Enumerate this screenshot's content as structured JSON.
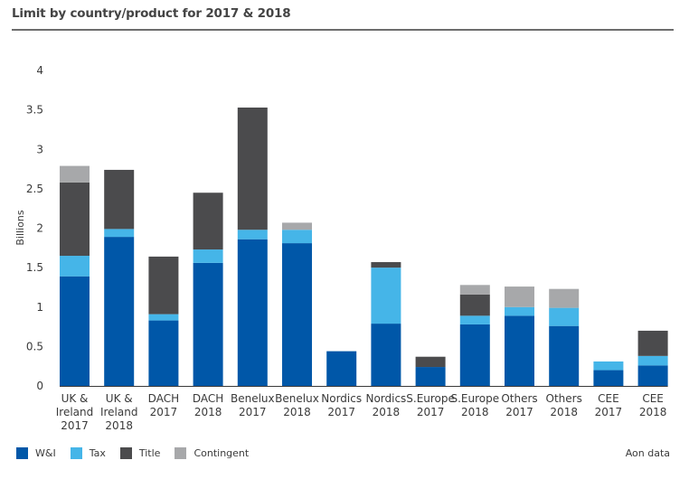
{
  "chart_data": {
    "type": "bar",
    "stacked": true,
    "title": "Limit by country/product for 2017 & 2018",
    "xlabel": "",
    "ylabel": "Billions",
    "ylim": [
      0,
      4
    ],
    "yticks": [
      0,
      0.5,
      1,
      1.5,
      2,
      2.5,
      3,
      3.5,
      4
    ],
    "ytick_labels": [
      "0",
      "0.5",
      "1",
      "1.5",
      "2",
      "2.5",
      "3",
      "3.5",
      "4"
    ],
    "grid": false,
    "legend_position": "bottom-left",
    "categories": [
      [
        "UK &",
        "Ireland",
        "2017"
      ],
      [
        "UK &",
        "Ireland",
        "2018"
      ],
      [
        "DACH",
        "2017"
      ],
      [
        "DACH",
        "2018"
      ],
      [
        "Benelux",
        "2017"
      ],
      [
        "Benelux",
        "2018"
      ],
      [
        "Nordics",
        "2017"
      ],
      [
        "Nordics",
        "2018"
      ],
      [
        "S.Europe",
        "2017"
      ],
      [
        "S.Europe",
        "2018"
      ],
      [
        "Others",
        "2017"
      ],
      [
        "Others",
        "2018"
      ],
      [
        "CEE",
        "2017"
      ],
      [
        "CEE",
        "2018"
      ]
    ],
    "series": [
      {
        "name": "W&I",
        "color": "#0057A8",
        "values": [
          1.39,
          1.89,
          0.83,
          1.56,
          1.86,
          1.81,
          0.44,
          0.79,
          0.24,
          0.78,
          0.89,
          0.76,
          0.2,
          0.26
        ]
      },
      {
        "name": "Tax",
        "color": "#45B5E8",
        "values": [
          0.26,
          0.1,
          0.08,
          0.17,
          0.12,
          0.17,
          0.0,
          0.71,
          0.0,
          0.11,
          0.11,
          0.23,
          0.11,
          0.12
        ]
      },
      {
        "name": "Title",
        "color": "#4B4B4D",
        "values": [
          0.93,
          0.75,
          0.73,
          0.72,
          1.55,
          0.0,
          0.0,
          0.07,
          0.13,
          0.27,
          0.0,
          0.0,
          0.0,
          0.32
        ]
      },
      {
        "name": "Contingent",
        "color": "#A7A8AA",
        "values": [
          0.21,
          0.0,
          0.0,
          0.0,
          0.0,
          0.09,
          0.0,
          0.0,
          0.0,
          0.12,
          0.26,
          0.24,
          0.0,
          0.0
        ]
      }
    ],
    "source": "Aon data"
  }
}
